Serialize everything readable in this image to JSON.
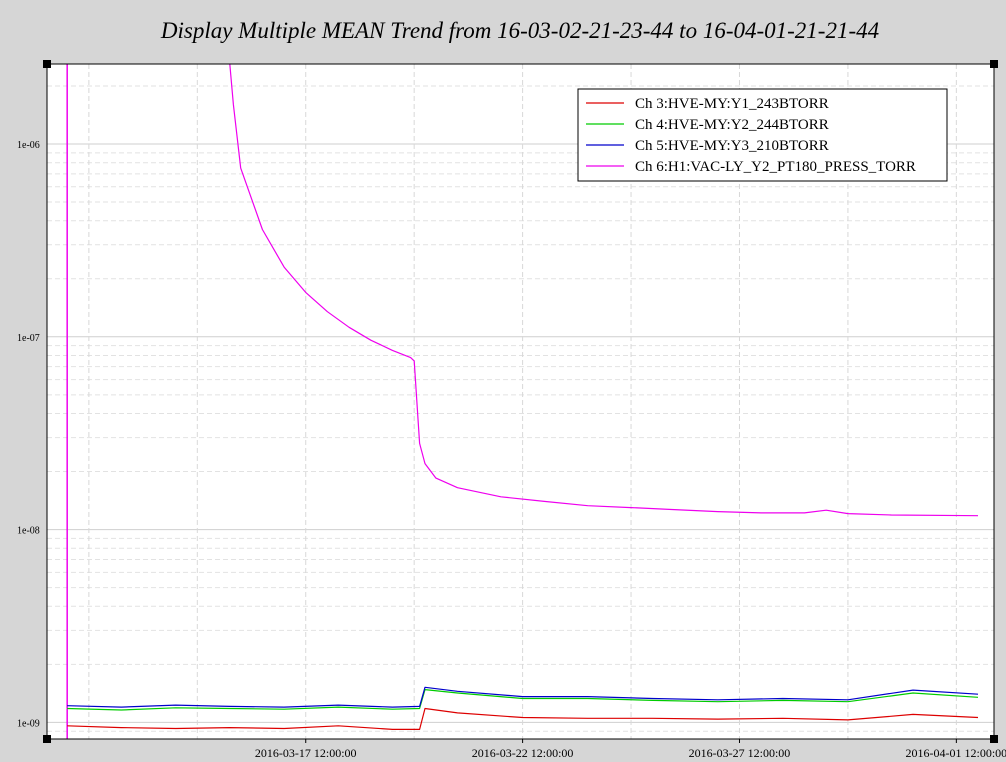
{
  "chart_data": {
    "type": "line",
    "title": "Display Multiple MEAN Trend from 16-03-02-21-23-44 to 16-04-01-21-21-44",
    "xlabel": "",
    "ylabel": "",
    "yscale": "log",
    "grid": true,
    "legend_position": "top-right",
    "x_ticks": [
      "2016-03-17 12:00:00",
      "2016-03-22 12:00:00",
      "2016-03-27 12:00:00",
      "2016-04-01 12:00:00"
    ],
    "y_ticks": [
      "1e-09",
      "1e-08",
      "1e-07",
      "1e-06"
    ],
    "xlim": [
      "2016-03-11 12:50:00",
      "2016-04-02 08:50:00"
    ],
    "ylim": [
      8.2e-10,
      2.6e-06
    ],
    "series": [
      {
        "name": "Ch 3:HVE-MY:Y1_243BTORR",
        "color": "#dd0000",
        "points": [
          [
            "2016-03-12 00:00:00",
            9.6e-10
          ],
          [
            "2016-03-13 06:00:00",
            9.4e-10
          ],
          [
            "2016-03-14 12:00:00",
            9.3e-10
          ],
          [
            "2016-03-15 18:00:00",
            9.4e-10
          ],
          [
            "2016-03-17 00:00:00",
            9.3e-10
          ],
          [
            "2016-03-18 06:00:00",
            9.6e-10
          ],
          [
            "2016-03-19 12:00:00",
            9.2e-10
          ],
          [
            "2016-03-20 03:00:00",
            9.2e-10
          ],
          [
            "2016-03-20 06:00:00",
            1.18e-09
          ],
          [
            "2016-03-21 00:00:00",
            1.12e-09
          ],
          [
            "2016-03-22 12:00:00",
            1.06e-09
          ],
          [
            "2016-03-24 00:00:00",
            1.05e-09
          ],
          [
            "2016-03-25 12:00:00",
            1.05e-09
          ],
          [
            "2016-03-27 00:00:00",
            1.04e-09
          ],
          [
            "2016-03-28 12:00:00",
            1.05e-09
          ],
          [
            "2016-03-30 00:00:00",
            1.03e-09
          ],
          [
            "2016-03-31 12:00:00",
            1.1e-09
          ],
          [
            "2016-04-02 00:00:00",
            1.06e-09
          ]
        ]
      },
      {
        "name": "Ch 4:HVE-MY:Y2_244BTORR",
        "color": "#00cc00",
        "points": [
          [
            "2016-03-12 00:00:00",
            1.18e-09
          ],
          [
            "2016-03-13 06:00:00",
            1.16e-09
          ],
          [
            "2016-03-14 12:00:00",
            1.19e-09
          ],
          [
            "2016-03-15 18:00:00",
            1.18e-09
          ],
          [
            "2016-03-17 00:00:00",
            1.17e-09
          ],
          [
            "2016-03-18 06:00:00",
            1.2e-09
          ],
          [
            "2016-03-19 12:00:00",
            1.17e-09
          ],
          [
            "2016-03-20 03:00:00",
            1.18e-09
          ],
          [
            "2016-03-20 06:00:00",
            1.48e-09
          ],
          [
            "2016-03-21 00:00:00",
            1.42e-09
          ],
          [
            "2016-03-22 12:00:00",
            1.33e-09
          ],
          [
            "2016-03-24 00:00:00",
            1.33e-09
          ],
          [
            "2016-03-25 12:00:00",
            1.3e-09
          ],
          [
            "2016-03-27 00:00:00",
            1.28e-09
          ],
          [
            "2016-03-28 12:00:00",
            1.3e-09
          ],
          [
            "2016-03-30 00:00:00",
            1.28e-09
          ],
          [
            "2016-03-31 12:00:00",
            1.42e-09
          ],
          [
            "2016-04-02 00:00:00",
            1.35e-09
          ]
        ]
      },
      {
        "name": "Ch 5:HVE-MY:Y3_210BTORR",
        "color": "#0000cc",
        "points": [
          [
            "2016-03-12 00:00:00",
            1.22e-09
          ],
          [
            "2016-03-13 06:00:00",
            1.2e-09
          ],
          [
            "2016-03-14 12:00:00",
            1.23e-09
          ],
          [
            "2016-03-15 18:00:00",
            1.21e-09
          ],
          [
            "2016-03-17 00:00:00",
            1.2e-09
          ],
          [
            "2016-03-18 06:00:00",
            1.23e-09
          ],
          [
            "2016-03-19 12:00:00",
            1.2e-09
          ],
          [
            "2016-03-20 03:00:00",
            1.21e-09
          ],
          [
            "2016-03-20 06:00:00",
            1.52e-09
          ],
          [
            "2016-03-21 00:00:00",
            1.45e-09
          ],
          [
            "2016-03-22 12:00:00",
            1.36e-09
          ],
          [
            "2016-03-24 00:00:00",
            1.36e-09
          ],
          [
            "2016-03-25 12:00:00",
            1.33e-09
          ],
          [
            "2016-03-27 00:00:00",
            1.31e-09
          ],
          [
            "2016-03-28 12:00:00",
            1.33e-09
          ],
          [
            "2016-03-30 00:00:00",
            1.31e-09
          ],
          [
            "2016-03-31 12:00:00",
            1.47e-09
          ],
          [
            "2016-04-02 00:00:00",
            1.4e-09
          ]
        ]
      },
      {
        "name": "Ch 6:H1:VAC-LY_Y2_PT180_PRESS_TORR",
        "color": "#ee00ee",
        "points": [
          [
            "2016-03-15 18:00:00",
            2.6e-06
          ],
          [
            "2016-03-15 20:00:00",
            1.6e-06
          ],
          [
            "2016-03-16 00:00:00",
            7.5e-07
          ],
          [
            "2016-03-16 12:00:00",
            3.6e-07
          ],
          [
            "2016-03-17 00:00:00",
            2.3e-07
          ],
          [
            "2016-03-17 12:00:00",
            1.7e-07
          ],
          [
            "2016-03-18 00:00:00",
            1.35e-07
          ],
          [
            "2016-03-18 12:00:00",
            1.12e-07
          ],
          [
            "2016-03-19 00:00:00",
            9.6e-08
          ],
          [
            "2016-03-19 12:00:00",
            8.5e-08
          ],
          [
            "2016-03-19 22:00:00",
            7.8e-08
          ],
          [
            "2016-03-20 00:00:00",
            7.5e-08
          ],
          [
            "2016-03-20 03:00:00",
            2.8e-08
          ],
          [
            "2016-03-20 06:00:00",
            2.2e-08
          ],
          [
            "2016-03-20 12:00:00",
            1.85e-08
          ],
          [
            "2016-03-21 00:00:00",
            1.65e-08
          ],
          [
            "2016-03-22 00:00:00",
            1.48e-08
          ],
          [
            "2016-03-23 00:00:00",
            1.4e-08
          ],
          [
            "2016-03-24 00:00:00",
            1.33e-08
          ],
          [
            "2016-03-25 00:00:00",
            1.3e-08
          ],
          [
            "2016-03-26 00:00:00",
            1.27e-08
          ],
          [
            "2016-03-27 00:00:00",
            1.24e-08
          ],
          [
            "2016-03-28 00:00:00",
            1.22e-08
          ],
          [
            "2016-03-29 00:00:00",
            1.22e-08
          ],
          [
            "2016-03-29 12:00:00",
            1.26e-08
          ],
          [
            "2016-03-30 00:00:00",
            1.21e-08
          ],
          [
            "2016-03-31 00:00:00",
            1.19e-08
          ],
          [
            "2016-04-02 00:00:00",
            1.18e-08
          ]
        ]
      }
    ]
  }
}
